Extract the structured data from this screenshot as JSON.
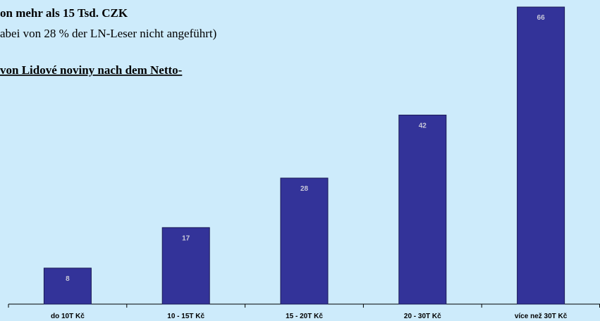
{
  "page_text": [
    "on mehr als 15 Tsd. CZK",
    "abei von 28 % der LN-Leser nicht angeführt)",
    "von Lidové noviny nach dem Netto-"
  ],
  "chart_data": {
    "type": "bar",
    "categories": [
      "do 10T Kč",
      "10 - 15T Kč",
      "15 - 20T Kč",
      "20 - 30T Kč",
      "více než 30T Kč"
    ],
    "values": [
      8,
      17,
      28,
      42,
      66
    ],
    "color": "#333399"
  }
}
